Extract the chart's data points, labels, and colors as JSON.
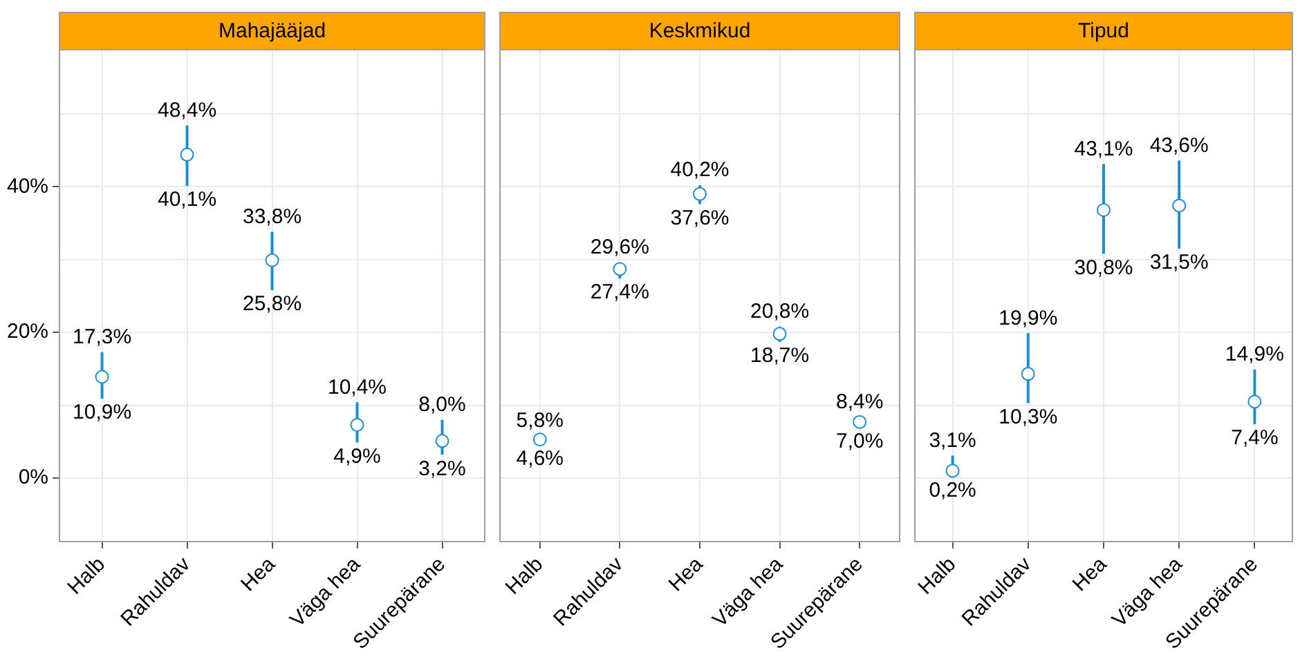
{
  "chart_data": [
    {
      "type": "scatter",
      "title": "Mahajääjad",
      "categories": [
        "Halb",
        "Rahuldav",
        "Hea",
        "Väga hea",
        "Suurepärane"
      ],
      "series": [
        {
          "color": "#1a8fd6",
          "values": [
            13.9,
            44.4,
            29.9,
            7.3,
            5.1
          ],
          "errors": [
            [
              10.9,
              17.3
            ],
            [
              40.1,
              48.4
            ],
            [
              25.8,
              33.8
            ],
            [
              4.9,
              10.4
            ],
            [
              3.2,
              8.0
            ]
          ]
        }
      ],
      "ylim": [
        -8.7,
        58.8
      ],
      "yticks": [
        {
          "value": 0,
          "label": "0%"
        },
        {
          "value": 10,
          "label": null
        },
        {
          "value": 20,
          "label": "20%"
        },
        {
          "value": 30,
          "label": null
        },
        {
          "value": 40,
          "label": "40%"
        },
        {
          "value": 50,
          "label": null
        }
      ],
      "grid": true,
      "marker": "circle",
      "legend": false,
      "annotations": [
        {
          "text": "17,3%",
          "x": "Halb",
          "y": 17.3
        },
        {
          "text": "10,9%",
          "x": "Halb",
          "y": 10.9
        },
        {
          "text": "48,4%",
          "x": "Rahuldav",
          "y": 48.4
        },
        {
          "text": "40,1%",
          "x": "Rahuldav",
          "y": 40.1
        },
        {
          "text": "33,8%",
          "x": "Hea",
          "y": 33.8
        },
        {
          "text": "25,8%",
          "x": "Hea",
          "y": 25.8
        },
        {
          "text": "10,4%",
          "x": "Väga hea",
          "y": 10.4
        },
        {
          "text": "4,9%",
          "x": "Väga hea",
          "y": 4.9
        },
        {
          "text": "8,0%",
          "x": "Suurepärane",
          "y": 8.0
        },
        {
          "text": "3,2%",
          "x": "Suurepärane",
          "y": 3.2
        }
      ]
    },
    {
      "type": "scatter",
      "title": "Keskmikud",
      "categories": [
        "Halb",
        "Rahuldav",
        "Hea",
        "Väga hea",
        "Suurepärane"
      ],
      "series": [
        {
          "color": "#1a8fd6",
          "values": [
            5.3,
            28.7,
            39.0,
            19.8,
            7.7
          ],
          "errors": [
            [
              4.6,
              5.8
            ],
            [
              27.4,
              29.6
            ],
            [
              37.6,
              40.2
            ],
            [
              18.7,
              20.8
            ],
            [
              7.0,
              8.4
            ]
          ]
        }
      ],
      "ylim": [
        -8.7,
        58.8
      ],
      "yticks": [
        0,
        10,
        20,
        30,
        40,
        50
      ],
      "grid": true,
      "marker": "circle",
      "legend": false,
      "tick_labels": "x",
      "annotations": [
        {
          "text": "5,8%",
          "x": "Halb",
          "y": 5.8
        },
        {
          "text": "4,6%",
          "x": "Halb",
          "y": 4.6
        },
        {
          "text": "29,6%",
          "x": "Rahuldav",
          "y": 29.6
        },
        {
          "text": "27,4%",
          "x": "Rahuldav",
          "y": 27.4
        },
        {
          "text": "40,2%",
          "x": "Hea",
          "y": 40.2
        },
        {
          "text": "37,6%",
          "x": "Hea",
          "y": 37.6
        },
        {
          "text": "20,8%",
          "x": "Väga hea",
          "y": 20.8
        },
        {
          "text": "18,7%",
          "x": "Väga hea",
          "y": 18.7
        },
        {
          "text": "8,4%",
          "x": "Suurepärane",
          "y": 8.4
        },
        {
          "text": "7,0%",
          "x": "Suurepärane",
          "y": 7.0
        }
      ]
    },
    {
      "type": "scatter",
      "title": "Tipud",
      "categories": [
        "Halb",
        "Rahuldav",
        "Hea",
        "Väga hea",
        "Suurepärane"
      ],
      "series": [
        {
          "color": "#1a8fd6",
          "values": [
            1.0,
            14.3,
            36.8,
            37.4,
            10.5
          ],
          "errors": [
            [
              0.2,
              3.1
            ],
            [
              10.3,
              19.9
            ],
            [
              30.8,
              43.1
            ],
            [
              31.5,
              43.6
            ],
            [
              7.4,
              14.9
            ]
          ]
        }
      ],
      "ylim": [
        -8.7,
        58.8
      ],
      "yticks": [
        0,
        10,
        20,
        30,
        40,
        50
      ],
      "grid": true,
      "marker": "circle",
      "legend": false,
      "tick_labels": "x",
      "annotations": [
        {
          "text": "3,1%",
          "x": "Halb",
          "y": 3.1
        },
        {
          "text": "0,2%",
          "x": "Halb",
          "y": 0.2
        },
        {
          "text": "19,9%",
          "x": "Rahuldav",
          "y": 19.9
        },
        {
          "text": "10,3%",
          "x": "Rahuldav",
          "y": 10.3
        },
        {
          "text": "43,1%",
          "x": "Hea",
          "y": 43.1
        },
        {
          "text": "30,8%",
          "x": "Hea",
          "y": 30.8
        },
        {
          "text": "43,6%",
          "x": "Väga hea",
          "y": 43.6
        },
        {
          "text": "31,5%",
          "x": "Väga hea",
          "y": 31.5
        },
        {
          "text": "14,9%",
          "x": "Suurepärane",
          "y": 14.9
        },
        {
          "text": "7,4%",
          "x": "Suurepärane",
          "y": 7.4
        }
      ]
    }
  ]
}
